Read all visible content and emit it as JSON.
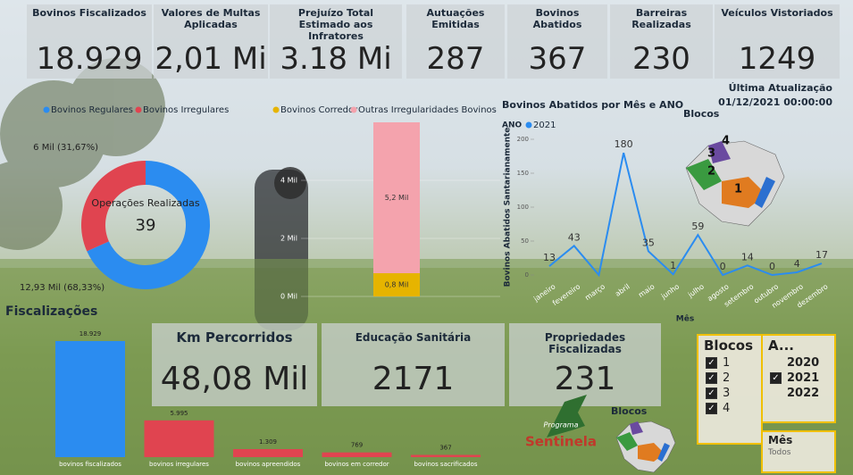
{
  "kpis": [
    {
      "label": "Bovinos Fiscalizados",
      "value": "18.929"
    },
    {
      "label": "Valores de Multas Aplicadas",
      "value": "2,01 Mi"
    },
    {
      "label": "Prejuízo Total Estimado aos Infratores",
      "value": "3.18 Mi"
    },
    {
      "label": "Autuações Emitidas",
      "value": "287"
    },
    {
      "label": "Bovinos Abatidos",
      "value": "367"
    },
    {
      "label": "Barreiras Realizadas",
      "value": "230"
    },
    {
      "label": "Veículos Vistoriados",
      "value": "1249"
    }
  ],
  "update": {
    "label": "Última Atualização",
    "value": "01/12/2021 00:00:00"
  },
  "cards": [
    {
      "label": "Km Percorridos",
      "value": "48,08 Mil"
    },
    {
      "label": "Educação Sanitária",
      "value": "2171"
    },
    {
      "label": "Propriedades Fiscalizadas",
      "value": "231"
    }
  ],
  "maps": [
    {
      "title": "Blocos",
      "regions": [
        "1",
        "2",
        "3",
        "4"
      ]
    },
    {
      "title": "Blocos"
    }
  ],
  "logo": {
    "line1": "Programa",
    "line2": "Sentinela"
  },
  "slicers": [
    {
      "title": "Blocos",
      "items": [
        {
          "label": "1",
          "checked": true
        },
        {
          "label": "2",
          "checked": true
        },
        {
          "label": "3",
          "checked": true
        },
        {
          "label": "4",
          "checked": true
        }
      ]
    },
    {
      "title": "A...",
      "items": [
        {
          "label": "2020",
          "checked": false
        },
        {
          "label": "2021",
          "checked": true
        },
        {
          "label": "2022",
          "checked": false
        }
      ]
    },
    {
      "title": "Mês",
      "value": "Todos"
    }
  ],
  "chart_data": [
    {
      "type": "donut",
      "center_title": "Operações Realizadas",
      "center_value": "39",
      "categories": [
        "Bovinos Regulares",
        "Bovinos Irregulares"
      ],
      "values": [
        12930,
        6000
      ],
      "value_labels": [
        "12,93 Mil (68,33%)",
        "6 Mil (31,67%)"
      ],
      "colors": [
        "#2b8cf0",
        "#e04450"
      ]
    },
    {
      "type": "stacked-bar",
      "series": [
        {
          "name": "Bovinos Corredor",
          "color": "#e6b400",
          "values": [
            800
          ],
          "value_labels": [
            "0,8 Mil"
          ]
        },
        {
          "name": "Outras Irregularidades Bovinos",
          "color": "#f4a3ad",
          "values": [
            5200
          ],
          "value_labels": [
            "5,2 Mil"
          ]
        }
      ],
      "ylim": [
        0,
        6000
      ],
      "yticks": [
        {
          "value": 0,
          "label": "0 Mil"
        },
        {
          "value": 2000,
          "label": "2 Mil"
        },
        {
          "value": 4000,
          "label": "4 Mil"
        }
      ]
    },
    {
      "type": "line",
      "title": "Bovinos Abatidos por Mês e ANO",
      "legend_title": "ANO",
      "x_label": "Mês",
      "y_label": "Bovinos Abatidos Santarianamente",
      "categories": [
        "janeiro",
        "fevereiro",
        "março",
        "abril",
        "maio",
        "junho",
        "julho",
        "agosto",
        "setembro",
        "outubro",
        "novembro",
        "dezembro"
      ],
      "series": [
        {
          "name": "2021",
          "color": "#2b8cf0",
          "values": [
            13,
            43,
            0,
            180,
            35,
            1,
            59,
            0,
            14,
            0,
            4,
            17
          ],
          "value_labels": [
            "13",
            "43",
            null,
            "180",
            "35",
            "1",
            "59",
            "0",
            "14",
            "0",
            "4",
            "17"
          ]
        }
      ],
      "ylim": [
        0,
        200
      ],
      "yticks": [
        0,
        50,
        100,
        150,
        200
      ]
    },
    {
      "type": "bar",
      "title": "Fiscalizações",
      "categories": [
        "bovinos fiscalizados",
        "bovinos irregulares",
        "bovinos apreendidos",
        "bovinos em corredor",
        "bovinos sacrificados"
      ],
      "values": [
        18929,
        5995,
        1309,
        769,
        367
      ],
      "value_labels": [
        "18.929",
        "5.995",
        "1.309",
        "769",
        "367"
      ],
      "colors": [
        "#2b8cf0",
        "#e04450",
        "#e04450",
        "#e04450",
        "#e04450"
      ]
    }
  ]
}
